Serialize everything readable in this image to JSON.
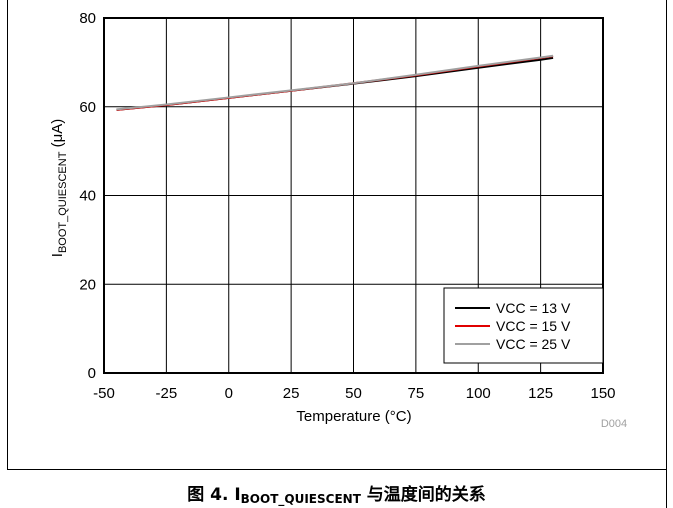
{
  "figure": {
    "code": "D004",
    "caption_prefix": "图 4. I",
    "caption_subscript": "BOOT_QUIESCENT",
    "caption_suffix": " 与温度间的关系"
  },
  "chart_data": {
    "type": "line",
    "title": "",
    "xlabel": "Temperature (°C)",
    "ylabel_main": "I",
    "ylabel_subscript": "BOOT_QUIESCENT",
    "ylabel_unit": " (μA)",
    "xlim": [
      -50,
      150
    ],
    "ylim": [
      0,
      80
    ],
    "xticks": [
      -50,
      -25,
      0,
      25,
      50,
      75,
      100,
      125,
      150
    ],
    "yticks": [
      0,
      20,
      40,
      60,
      80
    ],
    "grid": true,
    "legend_position": "bottom-right",
    "series": [
      {
        "name": "VCC = 13 V",
        "color": "#000000",
        "x": [
          -45,
          -25,
          0,
          25,
          50,
          75,
          100,
          125,
          130
        ],
        "y": [
          59.3,
          60.4,
          62.0,
          63.6,
          65.2,
          66.9,
          68.8,
          70.6,
          71.0
        ]
      },
      {
        "name": "VCC = 15 V",
        "color": "#e00000",
        "x": [
          -45,
          -25,
          0,
          25,
          50,
          75,
          100,
          125,
          130
        ],
        "y": [
          59.3,
          60.4,
          62.0,
          63.6,
          65.3,
          67.1,
          69.1,
          71.0,
          71.4
        ]
      },
      {
        "name": "VCC = 25 V",
        "color": "#a0a0a0",
        "x": [
          -45,
          -25,
          0,
          25,
          50,
          75,
          100,
          125,
          130
        ],
        "y": [
          59.4,
          60.5,
          62.1,
          63.7,
          65.3,
          67.2,
          69.2,
          71.1,
          71.5
        ]
      }
    ]
  }
}
